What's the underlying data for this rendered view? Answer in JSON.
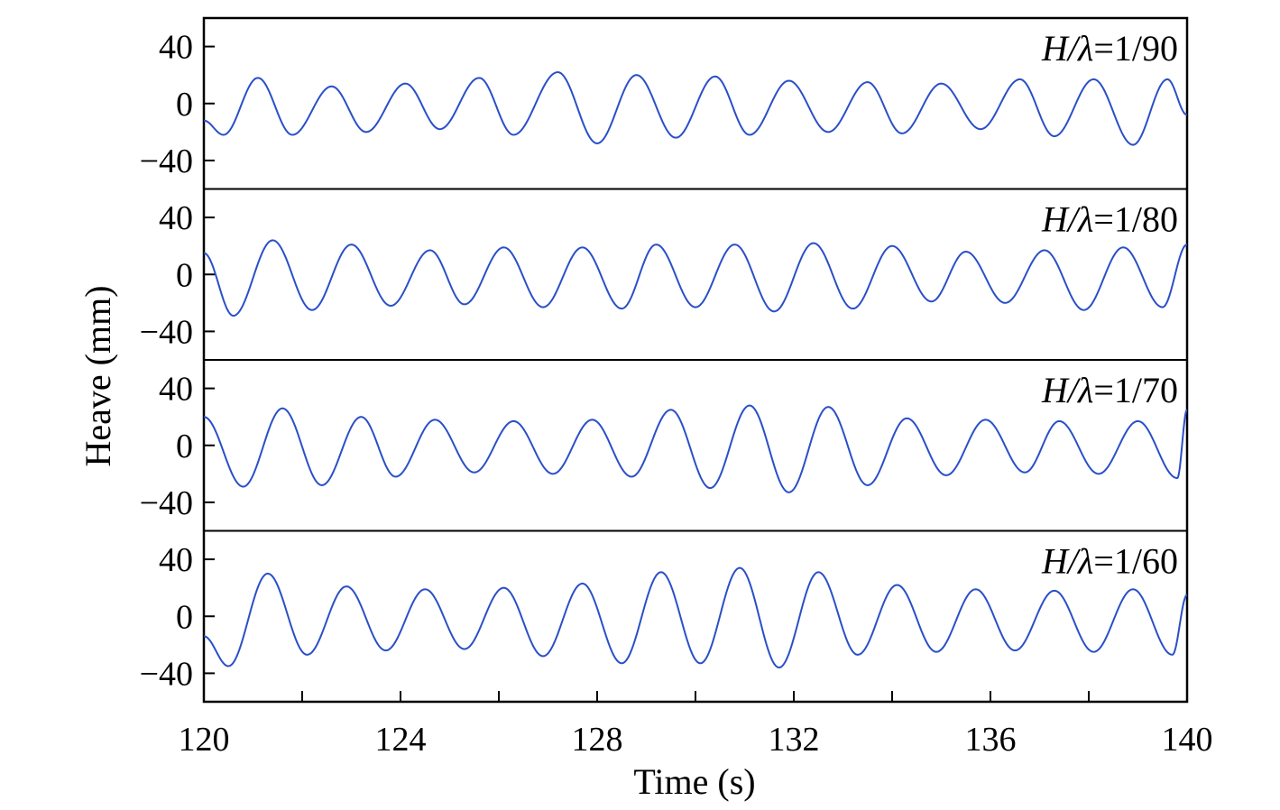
{
  "chart_data": {
    "type": "line",
    "xlabel": "Time (s)",
    "ylabel": "Heave (mm)",
    "xlim": [
      120,
      140
    ],
    "ylim": [
      -60,
      60
    ],
    "x_ticks": [
      120,
      124,
      128,
      132,
      136,
      140
    ],
    "x_minor_ticks": [
      122,
      126,
      130,
      134,
      138
    ],
    "y_ticks": [
      40,
      0,
      -40
    ],
    "y_tick_labels": [
      "40",
      "0",
      "−40"
    ],
    "line_color": "#2a4fc8",
    "grid": false,
    "panels": [
      {
        "label_var": "H/λ",
        "label_eq": "=1/90",
        "label_var_H": "H/",
        "label_var_lambda": "λ",
        "extrema": [
          [
            120.0,
            -12
          ],
          [
            120.4,
            -22
          ],
          [
            121.1,
            18
          ],
          [
            121.8,
            -22
          ],
          [
            122.6,
            12
          ],
          [
            123.3,
            -20
          ],
          [
            124.1,
            14
          ],
          [
            124.8,
            -18
          ],
          [
            125.6,
            18
          ],
          [
            126.3,
            -22
          ],
          [
            127.2,
            22
          ],
          [
            128.0,
            -28
          ],
          [
            128.8,
            20
          ],
          [
            129.6,
            -24
          ],
          [
            130.4,
            19
          ],
          [
            131.1,
            -22
          ],
          [
            131.9,
            16
          ],
          [
            132.7,
            -20
          ],
          [
            133.5,
            15
          ],
          [
            134.2,
            -21
          ],
          [
            135.0,
            14
          ],
          [
            135.8,
            -18
          ],
          [
            136.6,
            17
          ],
          [
            137.3,
            -23
          ],
          [
            138.1,
            17
          ],
          [
            138.9,
            -29
          ],
          [
            139.6,
            17
          ],
          [
            140.0,
            -8
          ]
        ]
      },
      {
        "label_var": "H/λ",
        "label_eq": "=1/80",
        "label_var_H": "H/",
        "label_var_lambda": "λ",
        "extrema": [
          [
            120.0,
            15
          ],
          [
            120.6,
            -29
          ],
          [
            121.4,
            24
          ],
          [
            122.2,
            -25
          ],
          [
            123.0,
            21
          ],
          [
            123.8,
            -22
          ],
          [
            124.6,
            17
          ],
          [
            125.3,
            -21
          ],
          [
            126.1,
            19
          ],
          [
            126.9,
            -23
          ],
          [
            127.7,
            19
          ],
          [
            128.5,
            -24
          ],
          [
            129.2,
            21
          ],
          [
            130.0,
            -23
          ],
          [
            130.8,
            21
          ],
          [
            131.6,
            -26
          ],
          [
            132.4,
            22
          ],
          [
            133.2,
            -24
          ],
          [
            134.0,
            20
          ],
          [
            134.8,
            -19
          ],
          [
            135.5,
            16
          ],
          [
            136.3,
            -20
          ],
          [
            137.1,
            17
          ],
          [
            137.9,
            -25
          ],
          [
            138.7,
            19
          ],
          [
            139.5,
            -23
          ],
          [
            140.0,
            21
          ]
        ]
      },
      {
        "label_var": "H/λ",
        "label_eq": "=1/70",
        "label_var_H": "H/",
        "label_var_lambda": "λ",
        "extrema": [
          [
            120.0,
            20
          ],
          [
            120.8,
            -29
          ],
          [
            121.6,
            26
          ],
          [
            122.4,
            -28
          ],
          [
            123.2,
            20
          ],
          [
            123.9,
            -22
          ],
          [
            124.7,
            18
          ],
          [
            125.5,
            -19
          ],
          [
            126.3,
            17
          ],
          [
            127.1,
            -20
          ],
          [
            127.9,
            18
          ],
          [
            128.7,
            -22
          ],
          [
            129.5,
            25
          ],
          [
            130.3,
            -30
          ],
          [
            131.1,
            28
          ],
          [
            131.9,
            -33
          ],
          [
            132.7,
            27
          ],
          [
            133.5,
            -28
          ],
          [
            134.3,
            19
          ],
          [
            135.1,
            -21
          ],
          [
            135.9,
            18
          ],
          [
            136.7,
            -19
          ],
          [
            137.4,
            17
          ],
          [
            138.2,
            -20
          ],
          [
            139.0,
            17
          ],
          [
            139.8,
            -23
          ],
          [
            140.0,
            25
          ]
        ]
      },
      {
        "label_var": "H/λ",
        "label_eq": "=1/60",
        "label_var_H": "H/",
        "label_var_lambda": "λ",
        "extrema": [
          [
            120.0,
            -14
          ],
          [
            120.5,
            -35
          ],
          [
            121.3,
            30
          ],
          [
            122.1,
            -27
          ],
          [
            122.9,
            21
          ],
          [
            123.7,
            -24
          ],
          [
            124.5,
            19
          ],
          [
            125.3,
            -23
          ],
          [
            126.1,
            20
          ],
          [
            126.9,
            -28
          ],
          [
            127.7,
            23
          ],
          [
            128.5,
            -33
          ],
          [
            129.3,
            31
          ],
          [
            130.1,
            -33
          ],
          [
            130.9,
            34
          ],
          [
            131.7,
            -36
          ],
          [
            132.5,
            31
          ],
          [
            133.3,
            -27
          ],
          [
            134.1,
            22
          ],
          [
            134.9,
            -25
          ],
          [
            135.7,
            19
          ],
          [
            136.5,
            -24
          ],
          [
            137.3,
            18
          ],
          [
            138.1,
            -25
          ],
          [
            138.9,
            19
          ],
          [
            139.7,
            -27
          ],
          [
            140.0,
            15
          ]
        ]
      }
    ]
  }
}
